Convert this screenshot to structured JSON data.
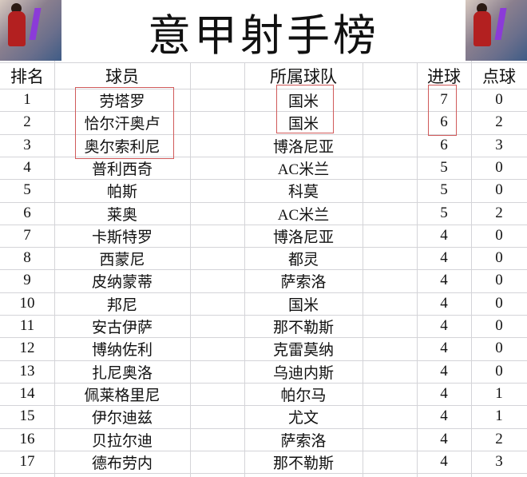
{
  "title": "意甲射手榜",
  "headers": {
    "rank": "排名",
    "player": "球员",
    "team": "所属球队",
    "goals": "进球",
    "penalties": "点球"
  },
  "highlight_color": "#d05a5a",
  "rows": [
    {
      "rank": "1",
      "player": "劳塔罗",
      "team": "国米",
      "goals": "7",
      "penalties": "0"
    },
    {
      "rank": "2",
      "player": "恰尔汗奥卢",
      "team": "国米",
      "goals": "6",
      "penalties": "2"
    },
    {
      "rank": "3",
      "player": "奥尔索利尼",
      "team": "博洛尼亚",
      "goals": "6",
      "penalties": "3"
    },
    {
      "rank": "4",
      "player": "普利西奇",
      "team": "AC米兰",
      "goals": "5",
      "penalties": "0"
    },
    {
      "rank": "5",
      "player": "帕斯",
      "team": "科莫",
      "goals": "5",
      "penalties": "0"
    },
    {
      "rank": "6",
      "player": "莱奥",
      "team": "AC米兰",
      "goals": "5",
      "penalties": "2"
    },
    {
      "rank": "7",
      "player": "卡斯特罗",
      "team": "博洛尼亚",
      "goals": "4",
      "penalties": "0"
    },
    {
      "rank": "8",
      "player": "西蒙尼",
      "team": "都灵",
      "goals": "4",
      "penalties": "0"
    },
    {
      "rank": "9",
      "player": "皮纳蒙蒂",
      "team": "萨索洛",
      "goals": "4",
      "penalties": "0"
    },
    {
      "rank": "10",
      "player": "邦尼",
      "team": "国米",
      "goals": "4",
      "penalties": "0"
    },
    {
      "rank": "11",
      "player": "安古伊萨",
      "team": "那不勒斯",
      "goals": "4",
      "penalties": "0"
    },
    {
      "rank": "12",
      "player": "博纳佐利",
      "team": "克雷莫纳",
      "goals": "4",
      "penalties": "0"
    },
    {
      "rank": "13",
      "player": "扎尼奥洛",
      "team": "乌迪内斯",
      "goals": "4",
      "penalties": "0"
    },
    {
      "rank": "14",
      "player": "佩莱格里尼",
      "team": "帕尔马",
      "goals": "4",
      "penalties": "1"
    },
    {
      "rank": "15",
      "player": "伊尔迪兹",
      "team": "尤文",
      "goals": "4",
      "penalties": "1"
    },
    {
      "rank": "16",
      "player": "贝拉尔迪",
      "team": "萨索洛",
      "goals": "4",
      "penalties": "2"
    },
    {
      "rank": "17",
      "player": "德布劳内",
      "team": "那不勒斯",
      "goals": "4",
      "penalties": "3"
    }
  ]
}
